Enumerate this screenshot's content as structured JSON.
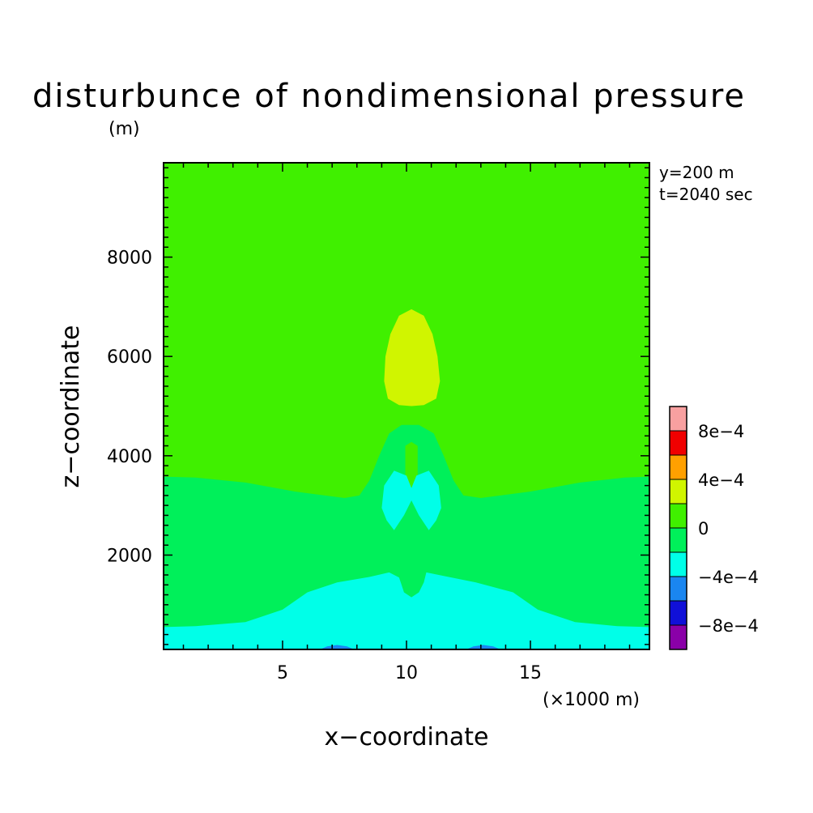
{
  "chart_data": {
    "type": "heatmap",
    "title": "disturbunce of nondimensional pressure",
    "unit_label": "(m)",
    "xlabel": "x−coordinate",
    "ylabel": "z−coordinate",
    "x_unit_note": "(×1000 m)",
    "info_lines": [
      "y=200 m",
      "t=2040 sec"
    ],
    "xlim": [
      0.2,
      19.8
    ],
    "ylim": [
      100,
      9900
    ],
    "x_ticks": [
      {
        "value": 5,
        "label": "5"
      },
      {
        "value": 10,
        "label": "10"
      },
      {
        "value": 15,
        "label": "15"
      }
    ],
    "y_ticks": [
      {
        "value": 2000,
        "label": "2000"
      },
      {
        "value": 4000,
        "label": "4000"
      },
      {
        "value": 6000,
        "label": "6000"
      },
      {
        "value": 8000,
        "label": "8000"
      }
    ],
    "colorbar": {
      "levels": [
        -0.001,
        -0.0008,
        -0.0006,
        -0.0004,
        -0.0002,
        0,
        0.0002,
        0.0004,
        0.0006,
        0.0008,
        0.001
      ],
      "colors": [
        "#8a00a8",
        "#1010d8",
        "#1a86f0",
        "#00ffe8",
        "#00f05a",
        "#40f000",
        "#d0f500",
        "#ffa000",
        "#f00000",
        "#f8a0a0"
      ],
      "labels": [
        {
          "value": -0.0008,
          "label": "−8e−4"
        },
        {
          "value": -0.0004,
          "label": "−4e−4"
        },
        {
          "value": 0,
          "label": "0"
        },
        {
          "value": 0.0004,
          "label": "4e−4"
        },
        {
          "value": 0.0008,
          "label": "8e−4"
        }
      ]
    },
    "regions": [
      {
        "level_index": 5,
        "desc": "background above ~3500 m",
        "points": [
          [
            0.2,
            9900
          ],
          [
            19.8,
            9900
          ],
          [
            19.8,
            100
          ],
          [
            0.2,
            100
          ]
        ]
      },
      {
        "level_index": 4,
        "desc": "middle layer",
        "points": [
          [
            0.2,
            3580
          ],
          [
            1.5,
            3560
          ],
          [
            3.5,
            3460
          ],
          [
            5.5,
            3280
          ],
          [
            7.5,
            3150
          ],
          [
            8.1,
            3200
          ],
          [
            8.5,
            3500
          ],
          [
            8.9,
            4000
          ],
          [
            9.3,
            4450
          ],
          [
            9.8,
            4620
          ],
          [
            10.5,
            4620
          ],
          [
            11.1,
            4450
          ],
          [
            11.5,
            4000
          ],
          [
            11.9,
            3500
          ],
          [
            12.3,
            3200
          ],
          [
            13.0,
            3150
          ],
          [
            15.0,
            3280
          ],
          [
            17.0,
            3460
          ],
          [
            18.8,
            3560
          ],
          [
            19.8,
            3580
          ],
          [
            19.8,
            100
          ],
          [
            0.2,
            100
          ]
        ]
      },
      {
        "level_index": 6,
        "desc": "upper positive anomaly",
        "points": [
          [
            9.1,
            5500
          ],
          [
            9.15,
            6000
          ],
          [
            9.35,
            6450
          ],
          [
            9.7,
            6820
          ],
          [
            10.2,
            6950
          ],
          [
            10.7,
            6820
          ],
          [
            11.05,
            6450
          ],
          [
            11.25,
            6000
          ],
          [
            11.35,
            5500
          ],
          [
            11.2,
            5150
          ],
          [
            10.7,
            5020
          ],
          [
            10.2,
            5000
          ],
          [
            9.7,
            5020
          ],
          [
            9.25,
            5150
          ]
        ]
      },
      {
        "level_index": 5,
        "desc": "small column inside middle layer",
        "points": [
          [
            9.95,
            3400
          ],
          [
            9.95,
            4200
          ],
          [
            10.2,
            4280
          ],
          [
            10.45,
            4200
          ],
          [
            10.45,
            3400
          ],
          [
            10.2,
            3300
          ]
        ]
      },
      {
        "level_index": 3,
        "desc": "mid-level negative butterfly",
        "points": [
          [
            9.0,
            2950
          ],
          [
            9.1,
            3400
          ],
          [
            9.5,
            3700
          ],
          [
            10.0,
            3600
          ],
          [
            10.2,
            3350
          ],
          [
            10.4,
            3600
          ],
          [
            10.9,
            3700
          ],
          [
            11.3,
            3400
          ],
          [
            11.4,
            2950
          ],
          [
            11.2,
            2700
          ],
          [
            10.9,
            2500
          ],
          [
            10.5,
            2800
          ],
          [
            10.2,
            3100
          ],
          [
            9.9,
            2800
          ],
          [
            9.5,
            2500
          ],
          [
            9.2,
            2700
          ]
        ]
      },
      {
        "level_index": 3,
        "desc": "lower negative layer",
        "points": [
          [
            0.2,
            550
          ],
          [
            1.5,
            570
          ],
          [
            3.5,
            650
          ],
          [
            5.0,
            900
          ],
          [
            6.0,
            1250
          ],
          [
            7.2,
            1450
          ],
          [
            8.5,
            1560
          ],
          [
            9.3,
            1650
          ],
          [
            9.7,
            1550
          ],
          [
            9.8,
            1400
          ],
          [
            9.9,
            1250
          ],
          [
            10.2,
            1150
          ],
          [
            10.5,
            1250
          ],
          [
            10.7,
            1450
          ],
          [
            10.8,
            1650
          ],
          [
            11.5,
            1580
          ],
          [
            12.8,
            1450
          ],
          [
            14.3,
            1250
          ],
          [
            15.3,
            900
          ],
          [
            16.8,
            650
          ],
          [
            18.5,
            570
          ],
          [
            19.8,
            550
          ],
          [
            19.8,
            100
          ],
          [
            0.2,
            100
          ]
        ]
      },
      {
        "level_index": 2,
        "desc": "surface bump left",
        "points": [
          [
            6.5,
            100
          ],
          [
            6.8,
            160
          ],
          [
            7.2,
            190
          ],
          [
            7.6,
            160
          ],
          [
            7.9,
            100
          ]
        ]
      },
      {
        "level_index": 2,
        "desc": "surface bump right",
        "points": [
          [
            12.4,
            100
          ],
          [
            12.7,
            160
          ],
          [
            13.1,
            190
          ],
          [
            13.5,
            160
          ],
          [
            13.8,
            100
          ]
        ]
      }
    ]
  }
}
